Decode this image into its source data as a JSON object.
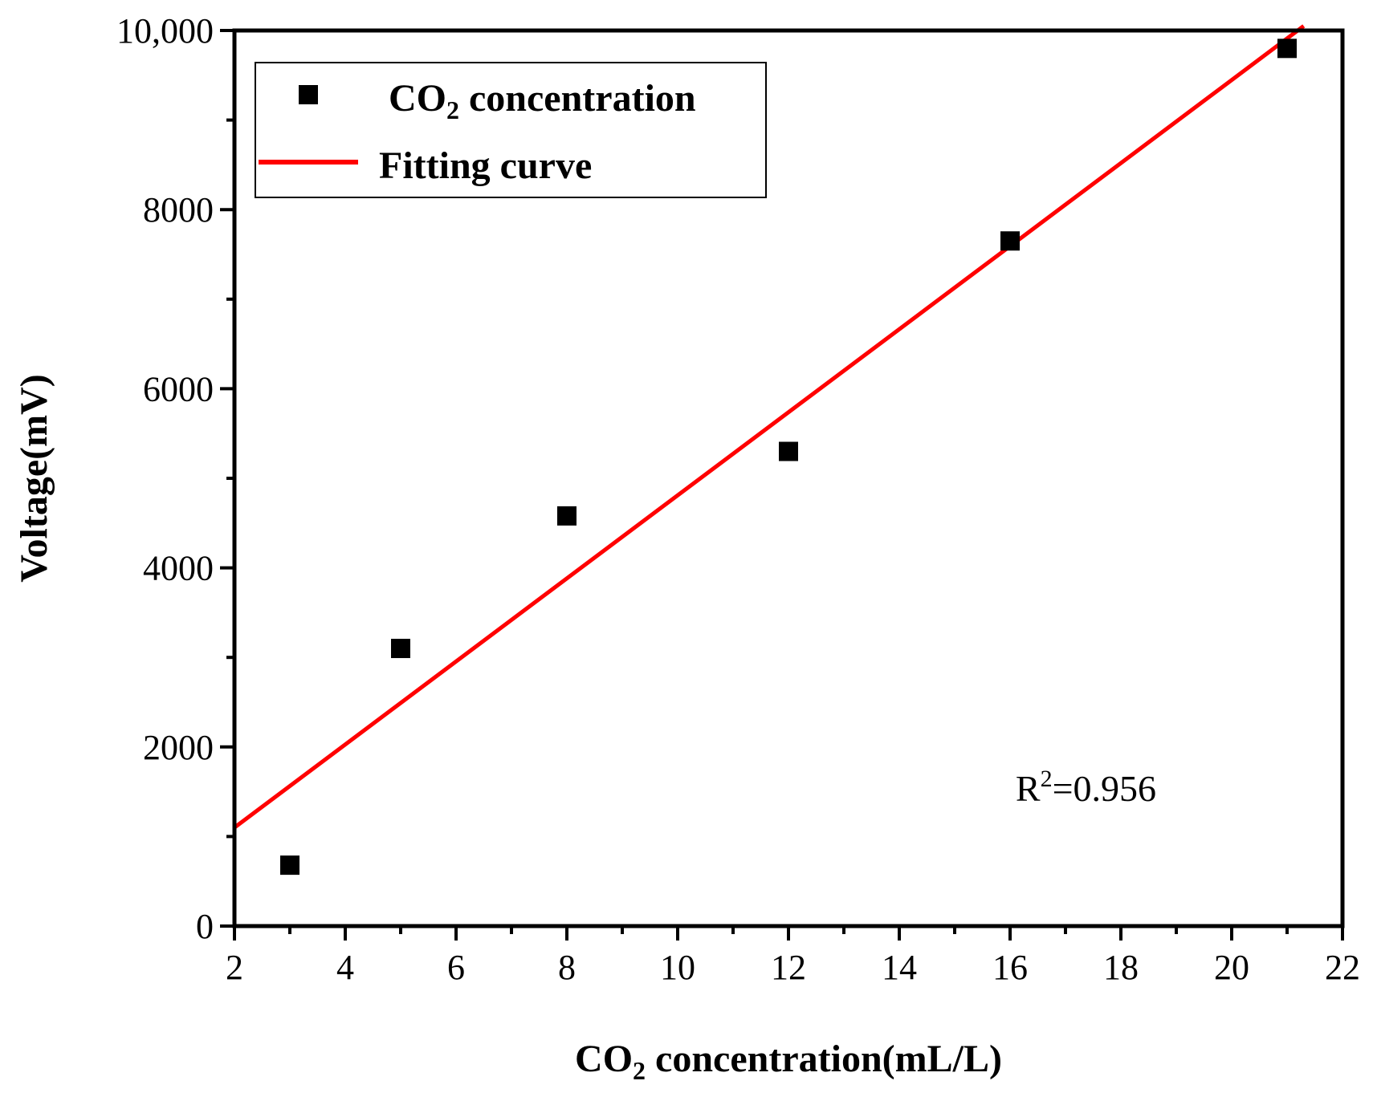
{
  "chart_data": {
    "type": "scatter",
    "title": "",
    "xlabel": "CO",
    "xlabel_sub": "2",
    "xlabel_rest": " concentration(mL/L)",
    "ylabel": "Voltage(mV)",
    "xlim": [
      2,
      22
    ],
    "ylim": [
      0,
      10000
    ],
    "x_ticks": [
      2,
      4,
      6,
      8,
      10,
      12,
      14,
      16,
      18,
      20,
      22
    ],
    "x_tick_labels": [
      "2",
      "4",
      "6",
      "8",
      "10",
      "12",
      "14",
      "16",
      "18",
      "20",
      "22"
    ],
    "y_ticks": [
      0,
      2000,
      4000,
      6000,
      8000,
      10000
    ],
    "y_tick_labels": [
      "0",
      "2000",
      "4000",
      "6000",
      "8000",
      "10,000"
    ],
    "series": [
      {
        "name": "CO2 concentration",
        "kind": "scatter",
        "marker": "square",
        "color": "#000000",
        "x": [
          3,
          5,
          8,
          12,
          16,
          21
        ],
        "y": [
          680,
          3100,
          4580,
          5300,
          7650,
          9800
        ]
      },
      {
        "name": "Fitting curve",
        "kind": "line",
        "color": "#ff0000",
        "x": [
          2,
          21.3
        ],
        "y": [
          1100,
          10050
        ]
      }
    ],
    "legend": {
      "position": "top-left",
      "entries": [
        {
          "prefix": "CO",
          "sub": "2",
          "suffix": " concentration"
        },
        {
          "prefix": "Fitting curve",
          "sub": "",
          "suffix": ""
        }
      ]
    },
    "annotation": {
      "prefix": "R",
      "sup": "2",
      "suffix": "=0.956",
      "x": 16.1,
      "y": 1400
    }
  }
}
